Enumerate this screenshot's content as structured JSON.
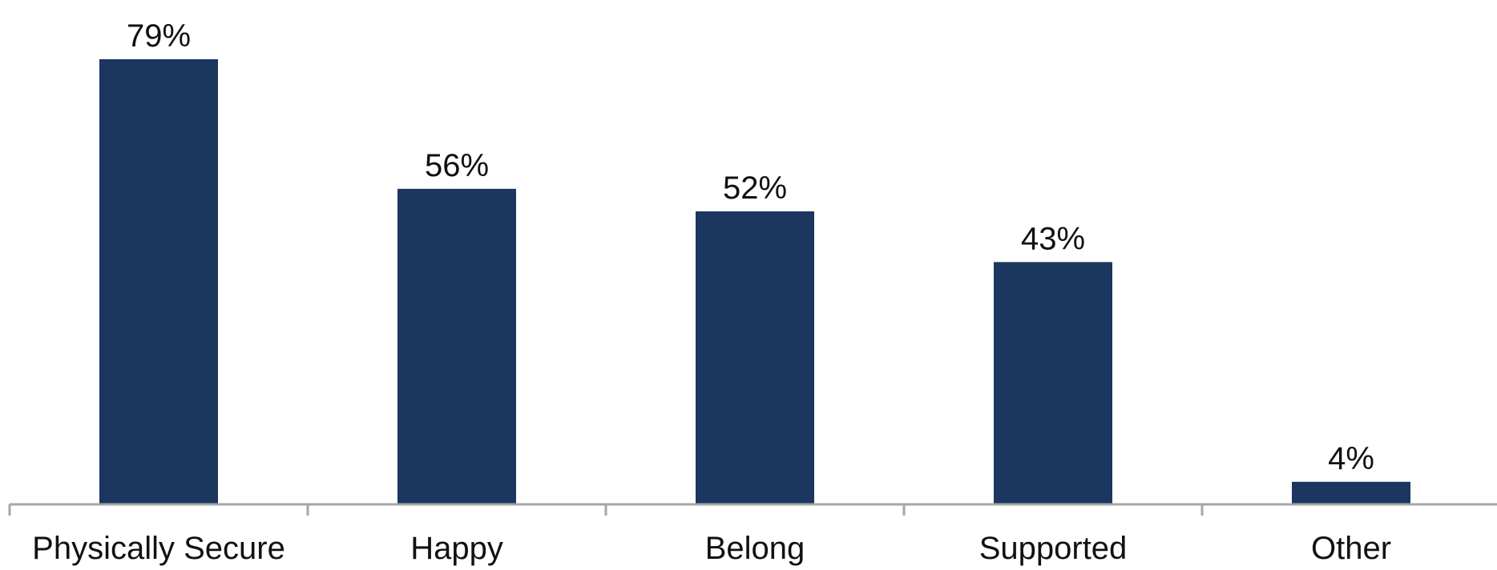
{
  "chart_data": {
    "type": "bar",
    "title": "",
    "xlabel": "",
    "ylabel": "",
    "categories": [
      "Physically Secure",
      "Happy",
      "Belong",
      "Supported",
      "Other"
    ],
    "values": [
      79,
      56,
      52,
      43,
      4
    ],
    "data_labels": [
      "79%",
      "56%",
      "52%",
      "43%",
      "4%"
    ],
    "ylim": [
      0,
      79
    ],
    "grid": false,
    "legend": "none",
    "colors": {
      "bar": "#1B365F",
      "axis": "#A6A6A6",
      "text": "#111111"
    }
  }
}
